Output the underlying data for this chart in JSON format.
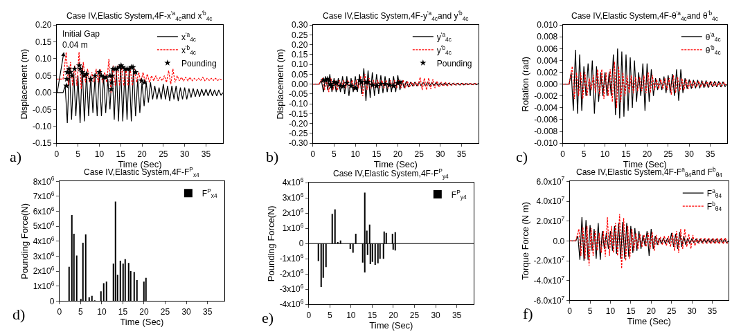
{
  "chart_data": [
    {
      "type": "line",
      "title": "Case IV,Elastic System,4F-x$^{'a}$$_{4c}$and x$^{'b}$$_{4c}$",
      "xlabel": "Time (Sec)",
      "ylabel": "Displacement (m)",
      "xlim": [
        0,
        39
      ],
      "xticks": [
        0,
        5,
        10,
        15,
        20,
        25,
        30,
        35
      ],
      "ylim": [
        -0.15,
        0.2
      ],
      "yticks": [
        {
          "value": -0.15,
          "label": "-0.15"
        },
        {
          "value": -0.1,
          "label": "-0.10"
        },
        {
          "value": -0.05,
          "label": "-0.05"
        },
        {
          "value": 0,
          "label": "0.00"
        },
        {
          "value": 0.05,
          "label": "0.05"
        },
        {
          "value": 0.1,
          "label": "0.10"
        },
        {
          "value": 0.15,
          "label": "0.15"
        },
        {
          "value": 0.2,
          "label": "0.20"
        }
      ],
      "legend": "top right",
      "annotations": [
        "a)",
        {
          "text": "Initial Gap\n0.04 m",
          "x": 1.7,
          "y": 0.12
        }
      ],
      "x": [
        0,
        1.5,
        2,
        2.5,
        3,
        3.5,
        4,
        4.5,
        5,
        5.5,
        6,
        6.5,
        7,
        7.5,
        8,
        8.5,
        9,
        9.5,
        10,
        10.5,
        11,
        11.5,
        12,
        12.5,
        13,
        13.5,
        14,
        14.5,
        15,
        15.5,
        16,
        16.5,
        17,
        17.5,
        18,
        18.5,
        19,
        19.5,
        20,
        20.5,
        21,
        21.5,
        22,
        22.5,
        23,
        23.5,
        24,
        24.5,
        25,
        25.5,
        26,
        26.5,
        27,
        27.5,
        28,
        28.5,
        29,
        29.5,
        30,
        30.5,
        31,
        31.5,
        32,
        32.5,
        33,
        33.5,
        34,
        34.5,
        35,
        35.5,
        36,
        36.5,
        37,
        37.5,
        38,
        38.5,
        39
      ],
      "series": [
        {
          "name": "x$^{'a}$$_{4c}$",
          "color": "#000000",
          "line_style": "solid",
          "values": [
            0,
            0,
            0.02,
            -0.09,
            0.07,
            -0.08,
            0.06,
            -0.07,
            0.05,
            -0.09,
            0.08,
            -0.085,
            0.06,
            -0.07,
            0.05,
            -0.06,
            0.05,
            -0.07,
            0.06,
            -0.07,
            0.05,
            -0.06,
            0.04,
            -0.05,
            0.07,
            -0.08,
            0.07,
            -0.085,
            0.08,
            -0.085,
            0.07,
            -0.08,
            0.07,
            -0.085,
            0.07,
            -0.07,
            0.04,
            -0.06,
            0.03,
            -0.04,
            0.03,
            -0.03,
            0.03,
            -0.02,
            0.02,
            -0.02,
            0.015,
            -0.02,
            0.025,
            -0.02,
            0.02,
            -0.025,
            0.02,
            -0.02,
            0.02,
            -0.025,
            0.015,
            -0.02,
            0.015,
            -0.02,
            0.012,
            -0.015,
            0.012,
            -0.012,
            0.01,
            -0.012,
            0.01,
            -0.01,
            0.01,
            -0.01,
            0.01,
            -0.01,
            0.008,
            -0.01,
            0.008,
            -0.008,
            0
          ]
        },
        {
          "name": "x$^{'b}$$_{4c}$",
          "color": "#ff0000",
          "line_style": "dashed",
          "x": [
            0,
            1.5,
            2.25,
            2.75,
            3.25,
            3.75,
            4.25,
            4.75,
            5.25,
            5.75,
            6.25,
            6.75,
            7.25,
            7.75,
            8.25,
            8.75,
            9.25,
            9.75,
            10.25,
            10.75,
            11.25,
            11.75,
            12.25,
            12.75,
            13.25,
            13.75,
            14.25,
            14.75,
            15.25,
            15.75,
            16.25,
            16.75,
            17.25,
            17.75,
            18.25,
            18.75,
            19.25,
            19.75,
            20.25,
            20.75,
            21.25,
            21.75,
            22.25,
            22.75,
            23.25,
            23.75,
            24.25,
            24.75,
            25.25,
            25.75,
            26.25,
            26.75,
            27.25,
            27.75,
            28.25,
            28.75,
            29.25,
            29.75,
            30.25,
            30.75,
            31.25,
            31.75,
            32.25,
            32.75,
            33.25,
            33.75,
            34.25,
            34.75,
            35.25,
            35.75,
            36.25,
            36.75,
            37.25,
            37.75,
            38.25,
            38.75
          ],
          "values": [
            0.04,
            0.04,
            0.12,
            0.02,
            0.09,
            0.02,
            0.08,
            0.02,
            0.12,
            0.01,
            0.09,
            0.03,
            0.07,
            0.03,
            0.06,
            0.03,
            0.07,
            0.03,
            0.07,
            0.03,
            0.06,
            0.03,
            0.1,
            0.0,
            0.08,
            0.02,
            0.08,
            0.02,
            0.08,
            0.02,
            0.07,
            0.02,
            0.07,
            0.02,
            0.07,
            0.03,
            0.06,
            0.03,
            0.06,
            0.03,
            0.055,
            0.03,
            0.05,
            0.035,
            0.05,
            0.035,
            0.045,
            0.035,
            0.05,
            0.03,
            0.065,
            0.025,
            0.07,
            0.03,
            0.05,
            0.035,
            0.045,
            0.035,
            0.045,
            0.035,
            0.045,
            0.035,
            0.042,
            0.036,
            0.042,
            0.036,
            0.045,
            0.035,
            0.042,
            0.036,
            0.042,
            0.036,
            0.042,
            0.036,
            0.04,
            0.037
          ]
        },
        {
          "name": "Pounding",
          "type": "scatter",
          "marker": "star",
          "color": "#000000",
          "x": [
            2.3,
            2.4,
            2.5,
            2.9,
            3.2,
            3.6,
            4.2,
            5.3,
            5.5,
            5.7,
            6.0,
            6.5,
            7.0,
            8.0,
            9.0,
            10.0,
            10.5,
            11.0,
            11.6,
            12.5,
            12.8,
            12.9,
            13.0,
            13.2,
            13.7,
            14.2,
            14.7,
            15.1,
            15.5,
            16.0,
            16.5,
            17.0,
            17.5,
            17.9,
            18.5,
            19.9,
            20.6
          ],
          "values": [
            0.02,
            0.04,
            0.06,
            0.07,
            0.06,
            0.05,
            0.07,
            0.08,
            0.07,
            null,
            0.06,
            0.05,
            0.055,
            0.04,
            0.05,
            0.06,
            0.05,
            0.045,
            0.045,
            0.05,
            0.01,
            0.03,
            0.05,
            0.07,
            0.07,
            0.07,
            0.075,
            0.08,
            0.075,
            0.07,
            0.07,
            0.07,
            0.075,
            0.075,
            0.06,
            0.035,
            0.03
          ]
        }
      ]
    },
    {
      "type": "line",
      "title": "Case IV,Elastic System,4F-y$^{'a}$$_{4c}$and y$^{'b}$$_{4c}$",
      "xlabel": "Time (Sec)",
      "ylabel": "Displacement (m)",
      "xlim": [
        0,
        39
      ],
      "xticks": [
        0,
        5,
        10,
        15,
        20,
        25,
        30,
        35
      ],
      "ylim": [
        -0.3,
        0.3
      ],
      "yticks": [
        {
          "value": -0.3,
          "label": "-0.30"
        },
        {
          "value": -0.25,
          "label": "-0.25"
        },
        {
          "value": -0.2,
          "label": "-0.20"
        },
        {
          "value": -0.15,
          "label": "-0.15"
        },
        {
          "value": -0.1,
          "label": "-0.10"
        },
        {
          "value": -0.05,
          "label": "-0.05"
        },
        {
          "value": 0,
          "label": "0.00"
        },
        {
          "value": 0.05,
          "label": "0.05"
        },
        {
          "value": 0.1,
          "label": "0.10"
        },
        {
          "value": 0.15,
          "label": "0.15"
        },
        {
          "value": 0.2,
          "label": "0.20"
        },
        {
          "value": 0.25,
          "label": "0.25"
        },
        {
          "value": 0.3,
          "label": "0.30"
        }
      ],
      "legend": "top right",
      "annotations": [
        "b)"
      ],
      "x": [
        0,
        1.5,
        2,
        2.5,
        3,
        3.5,
        4,
        4.5,
        5,
        5.5,
        6,
        6.5,
        7,
        7.5,
        8,
        8.5,
        9,
        9.5,
        10,
        10.5,
        11,
        11.5,
        12,
        12.5,
        13,
        13.5,
        14,
        14.5,
        15,
        15.5,
        16,
        16.5,
        17,
        17.5,
        18,
        18.5,
        19,
        19.5,
        20,
        20.5,
        21,
        21.5,
        22,
        22.5,
        23,
        23.5,
        24,
        24.5,
        25,
        25.5,
        26,
        26.5,
        27,
        27.5,
        28,
        28.5,
        29,
        29.5,
        30,
        30.5,
        31,
        31.5,
        32,
        32.5,
        33,
        33.5,
        34,
        34.5,
        35,
        35.5,
        36,
        36.5,
        37,
        37.5,
        38,
        38.5,
        39
      ],
      "series": [
        {
          "name": "y$^{'a}$$_{4c}$",
          "color": "#000000",
          "line_style": "solid",
          "values": [
            0,
            0,
            0.02,
            -0.04,
            0.04,
            -0.03,
            0.05,
            -0.04,
            0.03,
            -0.04,
            0.03,
            -0.04,
            0.04,
            -0.05,
            0.04,
            -0.06,
            0.03,
            -0.04,
            0.04,
            -0.04,
            0.05,
            -0.05,
            0.08,
            -0.085,
            0.07,
            -0.07,
            0.06,
            -0.06,
            0.05,
            -0.05,
            0.045,
            -0.045,
            0.04,
            -0.04,
            0.03,
            -0.04,
            0.04,
            -0.04,
            0.045,
            -0.03,
            0.02,
            -0.02,
            0.015,
            -0.015,
            0.01,
            -0.01,
            0.01,
            -0.01,
            0.01,
            -0.01,
            0.01,
            -0.01,
            0.01,
            -0.01,
            0.008,
            -0.008,
            0.008,
            -0.008,
            0.005,
            -0.005,
            0.005,
            -0.005,
            0.005,
            -0.005,
            0.004,
            -0.004,
            0.004,
            -0.004,
            0.004,
            -0.004,
            0.003,
            -0.003,
            0.003,
            -0.003,
            0.003,
            -0.003,
            0.003
          ]
        },
        {
          "name": "y$^{'b}$$_{4c}$",
          "color": "#ff0000",
          "line_style": "dashed",
          "x": [
            0,
            1.5,
            2.25,
            2.75,
            3.25,
            3.75,
            4.25,
            4.75,
            5.25,
            5.75,
            6.25,
            6.75,
            7.25,
            7.75,
            8.25,
            8.75,
            9.25,
            9.75,
            10.25,
            10.75,
            11.25,
            11.75,
            12.25,
            12.75,
            13.25,
            13.75,
            14.25,
            14.75,
            15.25,
            15.75,
            16.25,
            16.75,
            17.25,
            17.75,
            18.25,
            18.75,
            19.25,
            19.75,
            20.25,
            20.75,
            21.25,
            21.75,
            22.25,
            22.75,
            23.25,
            23.75,
            24.25,
            24.75,
            25.25,
            25.75,
            26.25,
            26.75,
            27.25,
            27.75,
            28.25,
            28.75,
            29.25,
            29.75,
            30.25,
            30.75,
            31.25,
            31.75,
            32.25,
            32.75,
            33.25,
            33.75,
            34.25,
            34.75,
            35.25,
            35.75,
            36.25,
            36.75,
            37.25,
            37.75,
            38.25,
            38.75
          ],
          "values": [
            0,
            0,
            0.03,
            -0.03,
            0.02,
            -0.04,
            0.03,
            -0.03,
            0.02,
            -0.03,
            0.02,
            -0.02,
            0.02,
            -0.02,
            0.02,
            -0.02,
            0.02,
            -0.03,
            0.02,
            -0.02,
            0.04,
            -0.06,
            0.05,
            -0.03,
            0.03,
            -0.02,
            0.02,
            -0.02,
            0.02,
            -0.02,
            0.02,
            -0.02,
            0.02,
            -0.02,
            0.02,
            -0.02,
            0.02,
            -0.02,
            0.02,
            -0.02,
            0.02,
            -0.02,
            0.015,
            -0.015,
            0.01,
            -0.01,
            0.01,
            -0.01,
            0.035,
            -0.03,
            0.03,
            -0.03,
            0.03,
            -0.025,
            0.025,
            -0.02,
            0.015,
            -0.015,
            0.01,
            -0.01,
            0.008,
            -0.008,
            0.006,
            -0.006,
            0.005,
            -0.005,
            0.005,
            -0.005,
            0.004,
            -0.004,
            0.004,
            -0.004,
            0.003,
            -0.003,
            0.003,
            -0.003
          ]
        },
        {
          "name": "Pounding",
          "type": "scatter",
          "marker": "star",
          "color": "#000000",
          "x": [
            2.5,
            3.0,
            3.4,
            3.8,
            4.1,
            4.4,
            5.0,
            5.6,
            6.5,
            7.2,
            8.0,
            9.0,
            10.0,
            11.0,
            11.4,
            12.5,
            13.0,
            14.0,
            15.0,
            16.0,
            17.0,
            18.0,
            19.0,
            20.0,
            20.5
          ],
          "values": [
            0.02,
            0.02,
            0.025,
            0.02,
            0.0,
            -0.01,
            0.01,
            0.005,
            -0.01,
            -0.01,
            0.005,
            -0.01,
            -0.02,
            0.02,
            0.01,
            0.01,
            0.01,
            -0.005,
            -0.01,
            0.0,
            0.0,
            -0.005,
            -0.01,
            0.005,
            0.01
          ]
        }
      ]
    },
    {
      "type": "line",
      "title": "Case IV,Elastic System,4F-θ$^{'a}$$_{4c}$and θ$^{'b}$$_{4c}$",
      "xlabel": "Time (Sec)",
      "ylabel": "Rotation (rad)",
      "xlim": [
        0,
        39
      ],
      "xticks": [
        0,
        5,
        10,
        15,
        20,
        25,
        30,
        35
      ],
      "ylim": [
        -0.01,
        0.01
      ],
      "yticks": [
        {
          "value": -0.01,
          "label": "-0.010"
        },
        {
          "value": -0.008,
          "label": "-0.008"
        },
        {
          "value": -0.006,
          "label": "-0.006"
        },
        {
          "value": -0.004,
          "label": "-0.004"
        },
        {
          "value": -0.002,
          "label": "-0.002"
        },
        {
          "value": 0,
          "label": "0.000"
        },
        {
          "value": 0.002,
          "label": "0.002"
        },
        {
          "value": 0.004,
          "label": "0.004"
        },
        {
          "value": 0.006,
          "label": "0.006"
        },
        {
          "value": 0.008,
          "label": "0.008"
        },
        {
          "value": 0.01,
          "label": "0.010"
        }
      ],
      "legend": "top right",
      "annotations": [
        "c)"
      ],
      "x": [
        0,
        1.5,
        2,
        2.5,
        3,
        3.5,
        4,
        4.5,
        5,
        5.5,
        6,
        6.5,
        7,
        7.5,
        8,
        8.5,
        9,
        9.5,
        10,
        10.5,
        11,
        11.5,
        12,
        12.5,
        13,
        13.5,
        14,
        14.5,
        15,
        15.5,
        16,
        16.5,
        17,
        17.5,
        18,
        18.5,
        19,
        19.5,
        20,
        20.5,
        21,
        21.5,
        22,
        22.5,
        23,
        23.5,
        24,
        24.5,
        25,
        25.5,
        26,
        26.5,
        27,
        27.5,
        28,
        28.5,
        29,
        29.5,
        30,
        30.5,
        31,
        31.5,
        32,
        32.5,
        33,
        33.5,
        34,
        34.5,
        35,
        35.5,
        36,
        36.5,
        37,
        37.5,
        38,
        38.5,
        39
      ],
      "series": [
        {
          "name": "θ$^{'a}$$_{4c}$",
          "color": "#000000",
          "line_style": "solid",
          "values": [
            0,
            0,
            0.002,
            -0.0045,
            0.0058,
            -0.005,
            0.005,
            -0.0045,
            0.003,
            -0.002,
            0.0035,
            -0.002,
            0.004,
            -0.005,
            0.003,
            -0.003,
            0.002,
            -0.002,
            0.002,
            -0.002,
            0.002,
            -0.002,
            0.005,
            -0.0052,
            0.006,
            -0.0058,
            0.0055,
            -0.0055,
            0.005,
            -0.0045,
            0.0045,
            -0.004,
            0.004,
            -0.003,
            0.002,
            -0.002,
            0.0035,
            -0.0045,
            0.0035,
            -0.003,
            0.0025,
            -0.002,
            0.001,
            -0.001,
            0.001,
            -0.001,
            0.0013,
            -0.0015,
            0.0015,
            -0.0015,
            0.0017,
            -0.002,
            0.0025,
            -0.0028,
            0.0025,
            -0.0015,
            0.001,
            -0.0008,
            0.0008,
            -0.0008,
            0.0007,
            -0.0007,
            0.0007,
            -0.0007,
            0.0006,
            -0.0006,
            0.0006,
            -0.0006,
            0.0005,
            -0.0005,
            0.0005,
            -0.0005,
            0.0005,
            -0.0005,
            0.0004,
            -0.0004,
            0
          ]
        },
        {
          "name": "θ$^{'b}$$_{4c}$",
          "color": "#ff0000",
          "line_style": "dashed",
          "x": [
            0,
            1.5,
            2.25,
            2.75,
            3.25,
            3.75,
            4.25,
            4.75,
            5.25,
            5.75,
            6.25,
            6.75,
            7.25,
            7.75,
            8.25,
            8.75,
            9.25,
            9.75,
            10.25,
            10.75,
            11.25,
            11.75,
            12.25,
            12.75,
            13.25,
            13.75,
            14.25,
            14.75,
            15.25,
            15.75,
            16.25,
            16.75,
            17.25,
            17.75,
            18.25,
            18.75,
            19.25,
            19.75,
            20.25,
            20.75,
            21.25,
            21.75,
            22.25,
            22.75,
            23.25,
            23.75,
            24.25,
            24.75,
            25.25,
            25.75,
            26.25,
            26.75,
            27.25,
            27.75,
            28.25,
            28.75,
            29.25,
            29.75,
            30.25,
            30.75,
            31.25,
            31.75,
            32.25,
            32.75,
            33.25,
            33.75,
            34.25,
            34.75,
            35.25,
            35.75,
            36.25,
            36.75,
            37.25,
            37.75,
            38.25,
            38.75
          ],
          "values": [
            0,
            0,
            0.003,
            -0.0025,
            0.002,
            -0.002,
            0.002,
            -0.0025,
            0.002,
            -0.002,
            0.001,
            -0.001,
            0.0015,
            -0.0015,
            0.0025,
            -0.002,
            0.0025,
            -0.0025,
            0.002,
            -0.002,
            0.0025,
            -0.003,
            0.0038,
            -0.004,
            0.003,
            -0.003,
            0.002,
            -0.002,
            0.0015,
            -0.0015,
            0.0015,
            -0.0015,
            0.0012,
            -0.0012,
            0.0012,
            -0.0012,
            0.0015,
            -0.0015,
            0.002,
            -0.0015,
            0.0015,
            -0.001,
            0.0008,
            -0.0008,
            0.0008,
            -0.0008,
            0.001,
            -0.001,
            0.001,
            -0.0018,
            0.0015,
            -0.0015,
            0.0012,
            -0.0012,
            0.001,
            -0.001,
            0.0008,
            -0.0008,
            0.0006,
            -0.0006,
            0.0005,
            -0.0005,
            0.0005,
            -0.0005,
            0.0004,
            -0.0004,
            0.0004,
            -0.0004,
            0.0004,
            -0.0004,
            0.0003,
            -0.0003,
            0.0003,
            -0.0003,
            0.0003,
            -0.0003
          ]
        }
      ]
    },
    {
      "type": "bar",
      "title": "Case IV,Elastic System,4F-F$^{P}$$_{x4}$",
      "xlabel": "Time (Sec)",
      "ylabel": "Pounding Force(N)",
      "xlim": [
        0,
        39
      ],
      "xticks": [
        0,
        5,
        10,
        15,
        20,
        25,
        30,
        35
      ],
      "ylim": [
        0,
        8000000
      ],
      "yticks": [
        0,
        {
          "value": 1000000,
          "label": "1x10$^{6}$"
        },
        {
          "value": 2000000,
          "label": "2x10$^{6}$"
        },
        {
          "value": 3000000,
          "label": "3x10$^{6}$"
        },
        {
          "value": 4000000,
          "label": "4x10$^{6}$"
        },
        {
          "value": 5000000,
          "label": "5x10$^{6}$"
        },
        {
          "value": 6000000,
          "label": "6x10$^{6}$"
        },
        {
          "value": 7000000,
          "label": "7x10$^{6}$"
        },
        {
          "value": 8000000,
          "label": "8x10$^{6}$"
        }
      ],
      "legend": "top right",
      "annotations": [
        "d)"
      ],
      "series": [
        {
          "name": "F$^{P}$$_{x4}$",
          "color": "#000000",
          "x": [
            2.3,
            2.9,
            3.5,
            4.1,
            5.0,
            5.6,
            6.2,
            7.0,
            7.7,
            8.3,
            9.8,
            10.4,
            11.1,
            12.7,
            13.2,
            13.8,
            14.4,
            15.0,
            15.6,
            16.3,
            16.9,
            17.6,
            18.4,
            19.9,
            20.4
          ],
          "values": [
            2300000,
            5750000,
            4500000,
            3050000,
            150000,
            3900000,
            4450000,
            250000,
            350000,
            50000,
            650000,
            1200000,
            1300000,
            2500000,
            6650000,
            1750000,
            2700000,
            2500000,
            2800000,
            2550000,
            2000000,
            1950000,
            1400000,
            1300000,
            1550000
          ]
        }
      ]
    },
    {
      "type": "bar",
      "title": "Case IV,Elastic System,4F-F$^{P}$$_{y4}$",
      "xlabel": "Time (Sec)",
      "ylabel": "Pounding Force(N)",
      "xlim": [
        0,
        39
      ],
      "xticks": [
        0,
        5,
        10,
        15,
        20,
        25,
        30,
        35
      ],
      "ylim": [
        -4000000,
        4000000
      ],
      "yticks": [
        {
          "value": -4000000,
          "label": "-4x10$^{6}$"
        },
        {
          "value": -3000000,
          "label": "-3x10$^{6}$"
        },
        {
          "value": -2000000,
          "label": "-2x10$^{6}$"
        },
        {
          "value": -1000000,
          "label": "-1x10$^{6}$"
        },
        0,
        {
          "value": 1000000,
          "label": "1x10$^{6}$"
        },
        {
          "value": 2000000,
          "label": "2x10$^{6}$"
        },
        {
          "value": 3000000,
          "label": "3x10$^{6}$"
        },
        {
          "value": 4000000,
          "label": "4x10$^{6}$"
        }
      ],
      "legend": "top right",
      "annotations": [
        "e)"
      ],
      "ref_lines": [
        {
          "axis": "y",
          "value": 0,
          "color": "#000000"
        }
      ],
      "series": [
        {
          "name": "F$^{P}$$_{y4}$",
          "color": "#000000",
          "x": [
            2.3,
            2.9,
            3.5,
            4.1,
            5.6,
            6.2,
            6.8,
            7.6,
            9.8,
            10.4,
            11.1,
            12.7,
            13.2,
            13.3,
            13.8,
            13.9,
            14.4,
            14.5,
            15.1,
            15.7,
            16.3,
            16.9,
            17.7,
            17.8,
            18.4,
            19.8,
            19.9,
            20.4,
            20.5
          ],
          "values": [
            -1150000,
            -2850000,
            -2250000,
            -1550000,
            1950000,
            2250000,
            100000,
            200000,
            -350000,
            -600000,
            650000,
            -1250000,
            3350000,
            -1900000,
            850000,
            -750000,
            1250000,
            -1350000,
            -1200000,
            -1400000,
            -1300000,
            -1000000,
            -1000000,
            800000,
            700000,
            650000,
            -400000,
            750000,
            -450000
          ]
        }
      ]
    },
    {
      "type": "line",
      "title": "Case IV,Elastic System,4F-F$^{a}$$_{θ4}$and F$^{b}$$_{θ4}$",
      "xlabel": "Time (Sec)",
      "ylabel": "Torque Force (N m)",
      "xlim": [
        0,
        39
      ],
      "xticks": [
        0,
        5,
        10,
        15,
        20,
        25,
        30,
        35
      ],
      "ylim": [
        -60000000,
        60000000
      ],
      "yticks": [
        {
          "value": -60000000,
          "label": "-6.0x10$^{7}$"
        },
        {
          "value": -40000000,
          "label": "-4.0x10$^{7}$"
        },
        {
          "value": -20000000,
          "label": "-2.0x10$^{7}$"
        },
        {
          "value": 0,
          "label": "0.0"
        },
        {
          "value": 20000000,
          "label": "2.0x10$^{7}$"
        },
        {
          "value": 40000000,
          "label": "4.0x10$^{7}$"
        },
        {
          "value": 60000000,
          "label": "6.0x10$^{7}$"
        }
      ],
      "legend": "top right",
      "annotations": [
        "f)"
      ],
      "x": [
        0,
        1.5,
        2,
        2.5,
        3,
        3.5,
        4,
        4.5,
        5,
        5.5,
        6,
        6.5,
        7,
        7.5,
        8,
        8.5,
        9,
        9.5,
        10,
        10.5,
        11,
        11.5,
        12,
        12.5,
        13,
        13.5,
        14,
        14.5,
        15,
        15.5,
        16,
        16.5,
        17,
        17.5,
        18,
        18.5,
        19,
        19.5,
        20,
        20.5,
        21,
        21.5,
        22,
        22.5,
        23,
        23.5,
        24,
        24.5,
        25,
        25.5,
        26,
        26.5,
        27,
        27.5,
        28,
        28.5,
        29,
        29.5,
        30,
        30.5,
        31,
        31.5,
        32,
        32.5,
        33,
        33.5,
        34,
        34.5,
        35,
        35.5,
        36,
        36.5,
        37,
        37.5,
        38,
        38.5,
        39
      ],
      "series": [
        {
          "name": "F$^{a}$$_{θ4}$",
          "color": "#000000",
          "line_style": "solid",
          "values": [
            0,
            0,
            5000000.0,
            -19000000.0,
            24000000.0,
            -20000000.0,
            21000000.0,
            -19000000.0,
            16000000.0,
            -10000000.0,
            12000000.0,
            -18000000.0,
            18000000.0,
            -19000000.0,
            10000000.0,
            -8000000.0,
            8000000.0,
            -8000000.0,
            10000000.0,
            -10000000.0,
            15000000.0,
            -13000000.0,
            18000000.0,
            -18000000.0,
            19000000.0,
            -18000000.0,
            18000000.0,
            -16000000.0,
            15000000.0,
            -12000000.0,
            13000000.0,
            -10000000.0,
            10000000.0,
            -8000000.0,
            6000000.0,
            -5000000.0,
            10000000.0,
            -15000000.0,
            12000000.0,
            -8000000.0,
            5000000.0,
            -4000000.0,
            3000000.0,
            -3000000.0,
            3000000.0,
            -3000000.0,
            3000000.0,
            -3000000.0,
            8000000.0,
            -6000000.0,
            7000000.0,
            -8000000.0,
            9000000.0,
            -6000000.0,
            5000000.0,
            -4000000.0,
            3000000.0,
            -3000000.0,
            2500000.0,
            -2000000.0,
            2000000.0,
            -2000000.0,
            2000000.0,
            -2000000.0,
            2000000.0,
            -2000000.0,
            2000000.0,
            -2000000.0,
            2000000.0,
            -2000000.0,
            2000000.0,
            -2000000.0,
            2000000.0,
            -2000000.0,
            2000000.0,
            -2000000.0,
            0
          ]
        },
        {
          "name": "F$^{b}$$_{θ4}$",
          "color": "#ff0000",
          "line_style": "dashed",
          "x": [
            0,
            1.5,
            2.25,
            2.75,
            3.25,
            3.75,
            4.25,
            4.75,
            5.25,
            5.75,
            6.25,
            6.75,
            7.25,
            7.75,
            8.25,
            8.75,
            9.25,
            9.75,
            10.25,
            10.75,
            11.25,
            11.75,
            12.25,
            12.75,
            13.25,
            13.75,
            14.25,
            14.75,
            15.25,
            15.75,
            16.25,
            16.75,
            17.25,
            17.75,
            18.25,
            18.75,
            19.25,
            19.75,
            20.25,
            20.75,
            21.25,
            21.75,
            22.25,
            22.75,
            23.25,
            23.75,
            24.25,
            24.75,
            25.25,
            25.75,
            26.25,
            26.75,
            27.25,
            27.75,
            28.25,
            28.75,
            29.25,
            29.75,
            30.25,
            30.75,
            31.25,
            31.75,
            32.25,
            32.75,
            33.25,
            33.75,
            34.25,
            34.75,
            35.25,
            35.75,
            36.25,
            36.75,
            37.25,
            37.75,
            38.25,
            38.75
          ],
          "values": [
            0,
            0,
            12000000.0,
            -15000000.0,
            14000000.0,
            -18000000.0,
            15000000.0,
            -25000000.0,
            13000000.0,
            -15000000.0,
            10000000.0,
            -10000000.0,
            8000000.0,
            -12000000.0,
            10000000.0,
            -16000000.0,
            24000000.0,
            -15000000.0,
            15000000.0,
            -12000000.0,
            18000000.0,
            -15000000.0,
            27000000.0,
            -28000000.0,
            23000000.0,
            -20000000.0,
            15000000.0,
            -18000000.0,
            12000000.0,
            -10000000.0,
            8000000.0,
            -8000000.0,
            7000000.0,
            -6000000.0,
            6000000.0,
            -6000000.0,
            8000000.0,
            -8000000.0,
            9000000.0,
            -10000000.0,
            6000000.0,
            -4000000.0,
            4000000.0,
            -4000000.0,
            5000000.0,
            -5000000.0,
            5000000.0,
            -6000000.0,
            8000000.0,
            -10000000.0,
            10000000.0,
            -12000000.0,
            12000000.0,
            -8000000.0,
            12000000.0,
            -6000000.0,
            7000000.0,
            -8000000.0,
            6000000.0,
            -5000000.0,
            3000000.0,
            -3000000.0,
            3000000.0,
            -3000000.0,
            3000000.0,
            -3000000.0,
            3000000.0,
            -3000000.0,
            3000000.0,
            -3000000.0,
            3000000.0,
            -3000000.0,
            3000000.0,
            -3000000.0,
            3000000.0,
            -3000000.0
          ]
        }
      ]
    }
  ]
}
